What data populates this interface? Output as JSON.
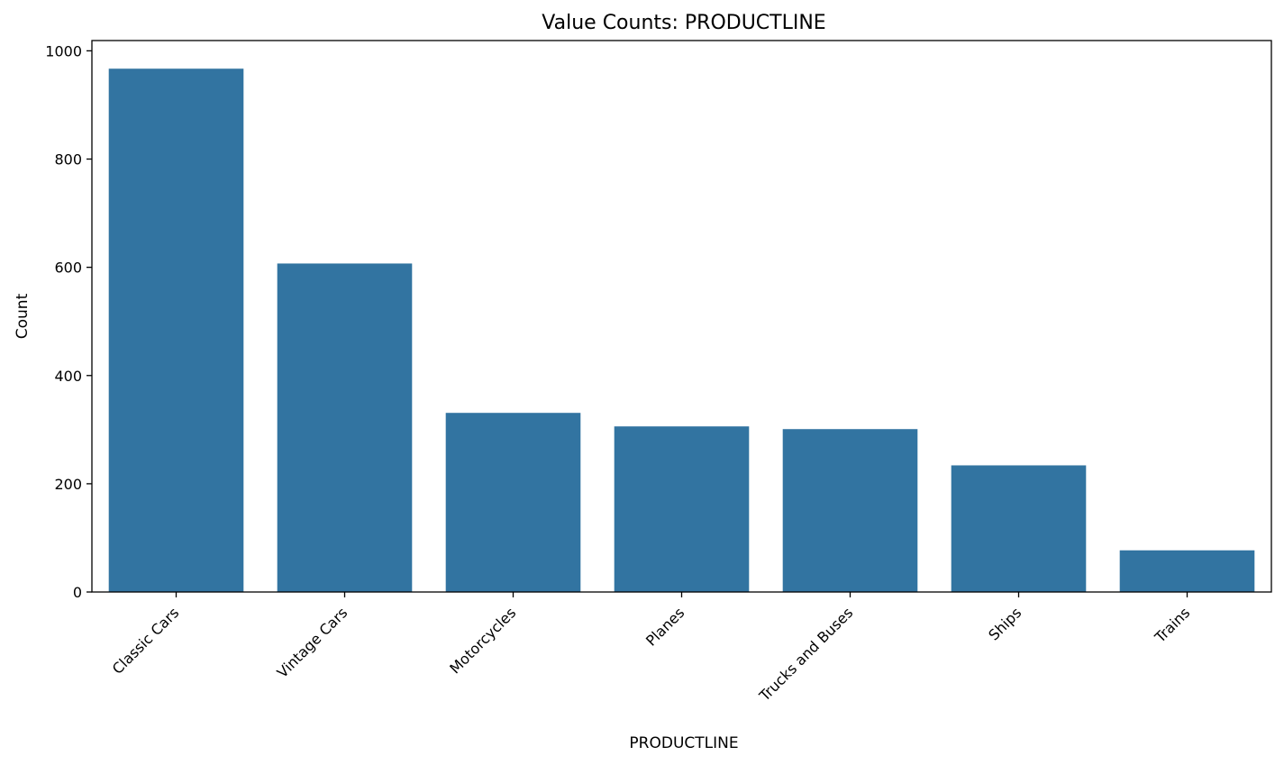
{
  "chart_data": {
    "type": "bar",
    "title": "Value Counts: PRODUCTLINE",
    "xlabel": "PRODUCTLINE",
    "ylabel": "Count",
    "categories": [
      "Classic Cars",
      "Vintage Cars",
      "Motorcycles",
      "Planes",
      "Trucks and Buses",
      "Ships",
      "Trains"
    ],
    "values": [
      967,
      607,
      331,
      306,
      301,
      234,
      77
    ],
    "ylim": [
      0,
      1019
    ],
    "yticks": [
      0,
      200,
      400,
      600,
      800,
      1000
    ],
    "grid": false,
    "x_tick_rotation_deg": 45,
    "bar_color": "#3274a1"
  }
}
